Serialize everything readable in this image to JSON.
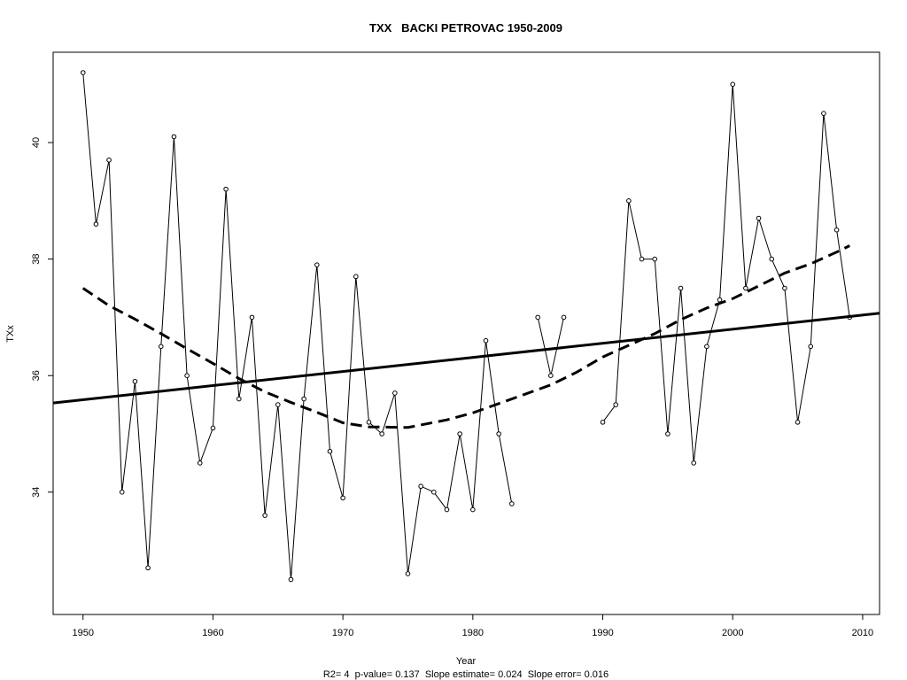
{
  "chart_data": {
    "type": "line",
    "title": "TXX   BACKI PETROVAC 1950-2009",
    "xlabel": "Year",
    "ylabel": "TXx",
    "footer": "R2= 4  p-value= 0.137  Slope estimate= 0.024  Slope error= 0.016",
    "xlim": [
      1947.7,
      2011.3
    ],
    "ylim": [
      31.9,
      41.55
    ],
    "x_ticks": [
      1950,
      1960,
      1970,
      1980,
      1990,
      2000,
      2010
    ],
    "y_ticks": [
      34,
      36,
      38,
      40
    ],
    "grid": false,
    "series": [
      {
        "style": "thin line with open circle markers",
        "x": [
          1950,
          1951,
          1952,
          1953,
          1954,
          1955,
          1956,
          1957,
          1958,
          1959,
          1960,
          1961,
          1962,
          1963,
          1964,
          1965,
          1966,
          1967,
          1968,
          1969,
          1970,
          1971,
          1972,
          1973,
          1974,
          1975,
          1976,
          1977,
          1978,
          1979,
          1980,
          1981,
          1982,
          1983,
          1984,
          1985,
          1986,
          1987,
          1988,
          1989,
          1990,
          1991,
          1992,
          1993,
          1994,
          1995,
          1996,
          1997,
          1998,
          1999,
          2000,
          2001,
          2002,
          2003,
          2004,
          2005,
          2006,
          2007,
          2008,
          2009
        ],
        "y": [
          41.2,
          38.6,
          39.7,
          34.0,
          35.9,
          32.7,
          36.5,
          40.1,
          36.0,
          34.5,
          35.1,
          39.2,
          35.6,
          37.0,
          33.6,
          35.5,
          32.5,
          35.6,
          37.9,
          34.7,
          33.9,
          37.7,
          35.2,
          35.0,
          35.7,
          32.6,
          34.1,
          34.0,
          33.7,
          35.0,
          33.7,
          36.6,
          35.0,
          33.8,
          null,
          37.0,
          36.0,
          37.0,
          null,
          null,
          35.2,
          35.5,
          39.0,
          38.0,
          38.0,
          35.0,
          37.5,
          34.5,
          36.5,
          37.3,
          41.0,
          37.5,
          38.7,
          38.0,
          37.5,
          35.2,
          36.5,
          40.5,
          38.5,
          37.0
        ]
      },
      {
        "style": "solid thick line (linear trend)",
        "x": [
          1947.7,
          2011.3
        ],
        "y": [
          35.53,
          37.07
        ]
      },
      {
        "style": "dashed thick line (smoothed trend)",
        "x": [
          1950,
          1952,
          1954,
          1956,
          1958,
          1960,
          1962,
          1964,
          1966,
          1968,
          1970,
          1972,
          1975,
          1978,
          1980,
          1982,
          1984,
          1986,
          1988,
          1990,
          1992,
          1994,
          1996,
          1998,
          2000,
          2002,
          2004,
          2006,
          2008,
          2009
        ],
        "y": [
          37.5,
          37.2,
          36.97,
          36.72,
          36.46,
          36.21,
          35.95,
          35.72,
          35.54,
          35.37,
          35.19,
          35.12,
          35.11,
          35.24,
          35.36,
          35.52,
          35.68,
          35.84,
          36.06,
          36.32,
          36.52,
          36.72,
          36.96,
          37.16,
          37.32,
          37.54,
          37.76,
          37.92,
          38.12,
          38.23
        ]
      }
    ]
  }
}
